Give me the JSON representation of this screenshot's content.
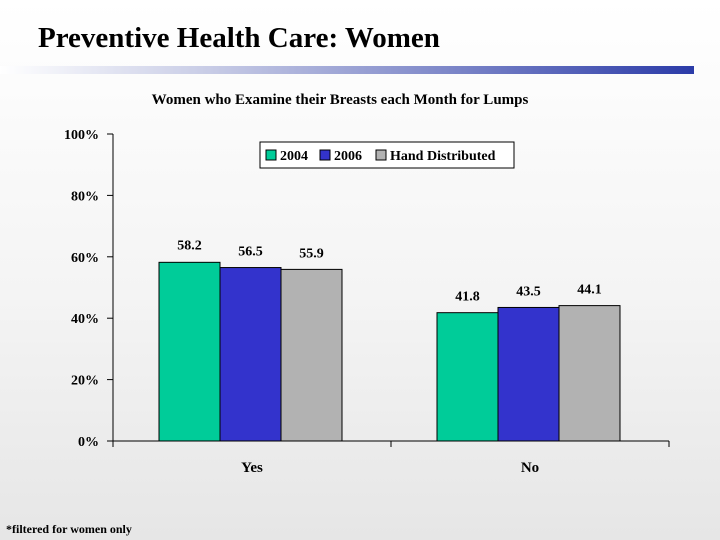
{
  "slide": {
    "title": "Preventive Health Care:  Women",
    "footnote": "*filtered for women only"
  },
  "colors": {
    "series_2004": "#00cc99",
    "series_2006": "#3333cc",
    "series_hand": "#b2b2b2",
    "title_rule": "#2b3ba8"
  },
  "chart_data": {
    "type": "bar",
    "title": "Women who Examine their Breasts each Month for Lumps",
    "categories": [
      "Yes",
      "No"
    ],
    "series": [
      {
        "name": "2004",
        "values": [
          58.2,
          41.8
        ],
        "labels": [
          "58.2",
          "41.8"
        ]
      },
      {
        "name": "2006",
        "values": [
          56.5,
          43.5
        ],
        "labels": [
          "56.5",
          "43.5"
        ]
      },
      {
        "name": "Hand Distributed",
        "values": [
          55.9,
          44.1
        ],
        "labels": [
          "55.9",
          "44.1"
        ]
      }
    ],
    "ylim": [
      0,
      100
    ],
    "yticks": [
      "0%",
      "20%",
      "40%",
      "60%",
      "80%",
      "100%"
    ],
    "grid": false,
    "legend_position": "top-right"
  }
}
